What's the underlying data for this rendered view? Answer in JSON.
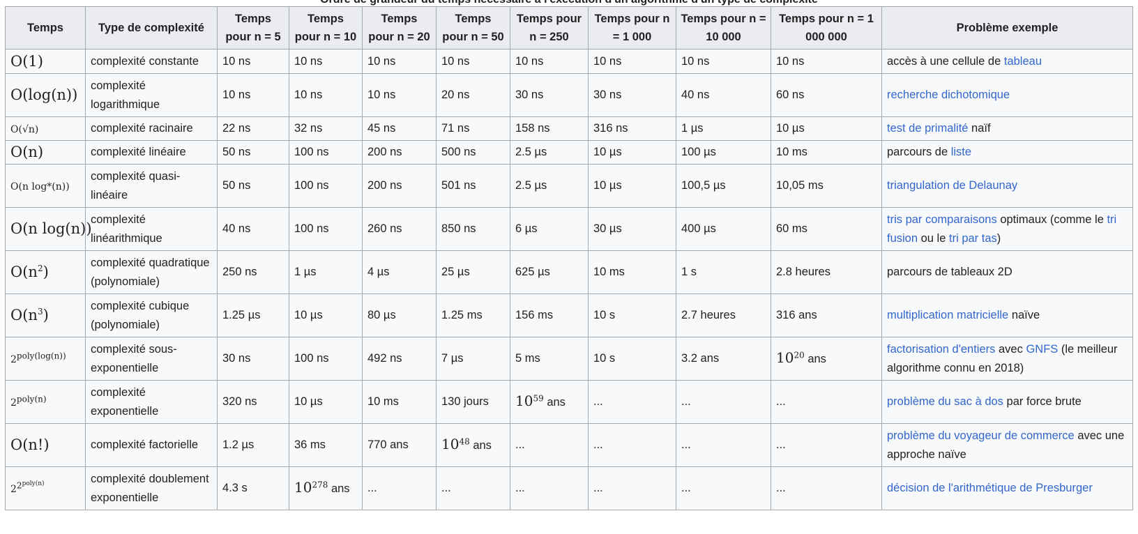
{
  "caption": "Ordre de grandeur du temps nécessaire à l'exécution d'un algorithme d'un type de complexité",
  "headers": [
    "Temps",
    "Type de complexité",
    "Temps pour n = 5",
    "Temps pour n = 10",
    "Temps pour n = 20",
    "Temps pour n = 50",
    "Temps pour n = 250",
    "Temps pour n = 1 000",
    "Temps pour n = 10 000",
    "Temps pour n = 1 000 000",
    "Problème exemple"
  ],
  "rows": [
    {
      "temps": "O(1)",
      "type": "complexité constante",
      "values": [
        "10 ns",
        "10 ns",
        "10 ns",
        "10 ns",
        "10 ns",
        "10 ns",
        "10 ns",
        "10 ns"
      ],
      "example": [
        {
          "text": "accès à une cellule de "
        },
        {
          "text": "tableau",
          "link": true
        }
      ]
    },
    {
      "temps": "O(log(n))",
      "type": "complexité logarithmique",
      "values": [
        "10 ns",
        "10 ns",
        "10 ns",
        "20 ns",
        "30 ns",
        "30 ns",
        "40 ns",
        "60 ns"
      ],
      "example": [
        {
          "text": "recherche dichotomique",
          "link": true,
          "visited": true
        }
      ]
    },
    {
      "temps": "O(√n)",
      "type": "complexité racinaire",
      "small": true,
      "values": [
        "22 ns",
        "32 ns",
        "45 ns",
        "71 ns",
        "158 ns",
        "316 ns",
        "1 µs",
        "10 µs"
      ],
      "example": [
        {
          "text": "test de primalité",
          "link": true
        },
        {
          "text": " naïf"
        }
      ]
    },
    {
      "temps": "O(n)",
      "type": "complexité linéaire",
      "values": [
        "50 ns",
        "100 ns",
        "200 ns",
        "500 ns",
        "2.5 µs",
        "10 µs",
        "100 µs",
        "10 ms"
      ],
      "example": [
        {
          "text": "parcours de "
        },
        {
          "text": "liste",
          "link": true
        }
      ]
    },
    {
      "temps": "O(n log*(n))",
      "type": "complexité quasi-linéaire",
      "small": true,
      "values": [
        "50 ns",
        "100 ns",
        "200 ns",
        "501 ns",
        "2.5 µs",
        "10 µs",
        "100,5 µs",
        "10,05 ms"
      ],
      "example": [
        {
          "text": "triangulation de Delaunay",
          "link": true
        }
      ]
    },
    {
      "temps": "O(n log(n))",
      "type": "complexité linéarithmique",
      "values": [
        "40 ns",
        "100 ns",
        "260 ns",
        "850 ns",
        "6 µs",
        "30 µs",
        "400 µs",
        "60 ms"
      ],
      "example": [
        {
          "text": "tris par comparaisons",
          "link": true
        },
        {
          "text": " optimaux (comme le "
        },
        {
          "text": "tri fusion",
          "link": true
        },
        {
          "text": " ou le "
        },
        {
          "text": "tri par tas",
          "link": true
        },
        {
          "text": ")"
        }
      ]
    },
    {
      "temps": "O(n²)",
      "type": "complexité quadratique (polynomiale)",
      "values": [
        "250 ns",
        "1 µs",
        "4 µs",
        "25 µs",
        "625 µs",
        "10 ms",
        "1 s",
        "2.8 heures"
      ],
      "example": [
        {
          "text": "parcours de tableaux 2D"
        }
      ]
    },
    {
      "temps": "O(n³)",
      "type": "complexité cubique (polynomiale)",
      "values": [
        "1.25 µs",
        "10 µs",
        "80 µs",
        "1.25 ms",
        "156 ms",
        "10 s",
        "2.7 heures",
        "316 ans"
      ],
      "example": [
        {
          "text": "multiplication matricielle",
          "link": true
        },
        {
          "text": " naïve"
        }
      ]
    },
    {
      "temps": "2^poly(log(n))",
      "type": "complexité sous-exponentielle",
      "small": true,
      "values": [
        "30 ns",
        "100 ns",
        "492 ns",
        "7 µs",
        "5 ms",
        "10 s",
        "3.2 ans",
        "10^20 ans"
      ],
      "example": [
        {
          "text": "factorisation d'entiers",
          "link": true
        },
        {
          "text": " avec "
        },
        {
          "text": "GNFS",
          "link": true
        },
        {
          "text": " (le meilleur algorithme connu en 2018)"
        }
      ]
    },
    {
      "temps": "2^poly(n)",
      "type": "complexité exponentielle",
      "small": true,
      "values": [
        "320 ns",
        "10 µs",
        "10 ms",
        "130 jours",
        "10^59 ans",
        "...",
        "...",
        "..."
      ],
      "example": [
        {
          "text": "problème du sac à dos",
          "link": true
        },
        {
          "text": " par force brute"
        }
      ]
    },
    {
      "temps": "O(n!)",
      "type": "complexité factorielle",
      "values": [
        "1.2 µs",
        "36 ms",
        "770 ans",
        "10^48 ans",
        "...",
        "...",
        "...",
        "..."
      ],
      "example": [
        {
          "text": "problème du voyageur de commerce",
          "link": true
        },
        {
          "text": " avec une approche naïve"
        }
      ]
    },
    {
      "temps": "2^2^poly(n)",
      "type": "complexité doublement exponentielle",
      "small": true,
      "values": [
        "4.3 s",
        "10^278 ans",
        "...",
        "...",
        "...",
        "...",
        "...",
        "..."
      ],
      "example": [
        {
          "text": "décision de l'arithmétique de Presburger",
          "link": true
        }
      ]
    }
  ]
}
